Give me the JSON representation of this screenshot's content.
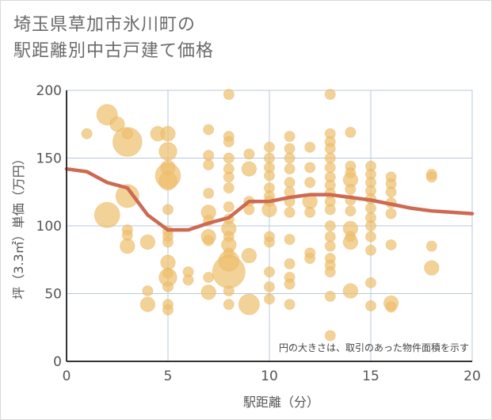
{
  "title_lines": [
    "埼玉県草加市氷川町の",
    "駅距離別中古戸建て価格"
  ],
  "chart_data": {
    "type": "scatter",
    "xlabel": "駅距離（分）",
    "ylabel": "坪（3.3㎡）単価（万円）",
    "xlim": [
      0,
      20
    ],
    "ylim": [
      0,
      200
    ],
    "x_ticks": [
      0,
      5,
      10,
      15,
      20
    ],
    "y_ticks": [
      0,
      50,
      100,
      150,
      200
    ],
    "grid": true,
    "annotation": "円の大きさは、取引のあった物件面積を示す",
    "colors": {
      "bubble": "#eebf6c",
      "bubble_edge": "#e6a94a",
      "line": "#cc6a52",
      "grid": "#b9c9dc",
      "axis": "#333333"
    },
    "points": [
      {
        "x": 1,
        "y": 168,
        "r": 1
      },
      {
        "x": 2,
        "y": 182,
        "r": 4
      },
      {
        "x": 2,
        "y": 108,
        "r": 6
      },
      {
        "x": 2.5,
        "y": 175,
        "r": 2
      },
      {
        "x": 3,
        "y": 162,
        "r": 8
      },
      {
        "x": 3,
        "y": 122,
        "r": 5
      },
      {
        "x": 3,
        "y": 168,
        "r": 1
      },
      {
        "x": 3,
        "y": 97,
        "r": 1
      },
      {
        "x": 3,
        "y": 93,
        "r": 1
      },
      {
        "x": 3,
        "y": 85,
        "r": 2
      },
      {
        "x": 4,
        "y": 88,
        "r": 2
      },
      {
        "x": 4,
        "y": 52,
        "r": 1
      },
      {
        "x": 4,
        "y": 42,
        "r": 2
      },
      {
        "x": 4.5,
        "y": 168,
        "r": 2
      },
      {
        "x": 5,
        "y": 168,
        "r": 2
      },
      {
        "x": 5,
        "y": 155,
        "r": 3
      },
      {
        "x": 5,
        "y": 143,
        "r": 2
      },
      {
        "x": 5,
        "y": 137,
        "r": 6
      },
      {
        "x": 5,
        "y": 133,
        "r": 3
      },
      {
        "x": 5,
        "y": 112,
        "r": 1
      },
      {
        "x": 5,
        "y": 96,
        "r": 1
      },
      {
        "x": 5,
        "y": 92,
        "r": 1
      },
      {
        "x": 5,
        "y": 88,
        "r": 1
      },
      {
        "x": 5,
        "y": 73,
        "r": 2
      },
      {
        "x": 5,
        "y": 65,
        "r": 1
      },
      {
        "x": 5,
        "y": 62,
        "r": 3
      },
      {
        "x": 5,
        "y": 55,
        "r": 1
      },
      {
        "x": 5,
        "y": 42,
        "r": 1
      },
      {
        "x": 5,
        "y": 38,
        "r": 1
      },
      {
        "x": 6,
        "y": 66,
        "r": 1
      },
      {
        "x": 6,
        "y": 60,
        "r": 1
      },
      {
        "x": 7,
        "y": 171,
        "r": 1
      },
      {
        "x": 7,
        "y": 152,
        "r": 1
      },
      {
        "x": 7,
        "y": 145,
        "r": 1
      },
      {
        "x": 7,
        "y": 124,
        "r": 1
      },
      {
        "x": 7,
        "y": 110,
        "r": 2
      },
      {
        "x": 7,
        "y": 104,
        "r": 1
      },
      {
        "x": 7,
        "y": 92,
        "r": 2
      },
      {
        "x": 7,
        "y": 89,
        "r": 1
      },
      {
        "x": 7,
        "y": 62,
        "r": 1
      },
      {
        "x": 7,
        "y": 51,
        "r": 2
      },
      {
        "x": 8,
        "y": 197,
        "r": 1
      },
      {
        "x": 8,
        "y": 166,
        "r": 1
      },
      {
        "x": 8,
        "y": 162,
        "r": 1
      },
      {
        "x": 8,
        "y": 150,
        "r": 1
      },
      {
        "x": 8,
        "y": 142,
        "r": 1
      },
      {
        "x": 8,
        "y": 136,
        "r": 1
      },
      {
        "x": 8,
        "y": 128,
        "r": 1
      },
      {
        "x": 8,
        "y": 114,
        "r": 1
      },
      {
        "x": 8,
        "y": 105,
        "r": 1
      },
      {
        "x": 8,
        "y": 98,
        "r": 2
      },
      {
        "x": 8,
        "y": 92,
        "r": 1
      },
      {
        "x": 8,
        "y": 86,
        "r": 2
      },
      {
        "x": 8,
        "y": 80,
        "r": 1
      },
      {
        "x": 8,
        "y": 74,
        "r": 4
      },
      {
        "x": 8,
        "y": 66,
        "r": 10
      },
      {
        "x": 8,
        "y": 52,
        "r": 1
      },
      {
        "x": 8,
        "y": 42,
        "r": 1
      },
      {
        "x": 9,
        "y": 153,
        "r": 1
      },
      {
        "x": 9,
        "y": 142,
        "r": 2
      },
      {
        "x": 9,
        "y": 118,
        "r": 1
      },
      {
        "x": 9,
        "y": 112,
        "r": 1
      },
      {
        "x": 9,
        "y": 78,
        "r": 2
      },
      {
        "x": 9,
        "y": 42,
        "r": 4
      },
      {
        "x": 10,
        "y": 158,
        "r": 1
      },
      {
        "x": 10,
        "y": 150,
        "r": 1
      },
      {
        "x": 10,
        "y": 143,
        "r": 1
      },
      {
        "x": 10,
        "y": 137,
        "r": 1
      },
      {
        "x": 10,
        "y": 128,
        "r": 1
      },
      {
        "x": 10,
        "y": 122,
        "r": 1
      },
      {
        "x": 10,
        "y": 118,
        "r": 1
      },
      {
        "x": 10,
        "y": 112,
        "r": 2
      },
      {
        "x": 10,
        "y": 92,
        "r": 1
      },
      {
        "x": 10,
        "y": 88,
        "r": 1
      },
      {
        "x": 10,
        "y": 66,
        "r": 1
      },
      {
        "x": 10,
        "y": 55,
        "r": 1
      },
      {
        "x": 10,
        "y": 46,
        "r": 1
      },
      {
        "x": 11,
        "y": 166,
        "r": 1
      },
      {
        "x": 11,
        "y": 157,
        "r": 1
      },
      {
        "x": 11,
        "y": 150,
        "r": 1
      },
      {
        "x": 11,
        "y": 142,
        "r": 1
      },
      {
        "x": 11,
        "y": 132,
        "r": 1
      },
      {
        "x": 11,
        "y": 125,
        "r": 1
      },
      {
        "x": 11,
        "y": 118,
        "r": 1
      },
      {
        "x": 11,
        "y": 110,
        "r": 1
      },
      {
        "x": 11,
        "y": 90,
        "r": 1
      },
      {
        "x": 11,
        "y": 72,
        "r": 1
      },
      {
        "x": 11,
        "y": 62,
        "r": 1
      },
      {
        "x": 11,
        "y": 57,
        "r": 1
      },
      {
        "x": 11,
        "y": 42,
        "r": 1
      },
      {
        "x": 12,
        "y": 158,
        "r": 1
      },
      {
        "x": 12,
        "y": 143,
        "r": 1
      },
      {
        "x": 12,
        "y": 132,
        "r": 1
      },
      {
        "x": 12,
        "y": 118,
        "r": 2
      },
      {
        "x": 12,
        "y": 110,
        "r": 1
      },
      {
        "x": 12,
        "y": 80,
        "r": 1
      },
      {
        "x": 12,
        "y": 76,
        "r": 1
      },
      {
        "x": 13,
        "y": 197,
        "r": 1
      },
      {
        "x": 13,
        "y": 168,
        "r": 1
      },
      {
        "x": 13,
        "y": 162,
        "r": 1
      },
      {
        "x": 13,
        "y": 157,
        "r": 1
      },
      {
        "x": 13,
        "y": 150,
        "r": 1
      },
      {
        "x": 13,
        "y": 143,
        "r": 1
      },
      {
        "x": 13,
        "y": 136,
        "r": 1
      },
      {
        "x": 13,
        "y": 130,
        "r": 1
      },
      {
        "x": 13,
        "y": 124,
        "r": 1
      },
      {
        "x": 13,
        "y": 118,
        "r": 1
      },
      {
        "x": 13,
        "y": 112,
        "r": 1
      },
      {
        "x": 13,
        "y": 100,
        "r": 1
      },
      {
        "x": 13,
        "y": 92,
        "r": 1
      },
      {
        "x": 13,
        "y": 85,
        "r": 1
      },
      {
        "x": 13,
        "y": 76,
        "r": 1
      },
      {
        "x": 13,
        "y": 71,
        "r": 1
      },
      {
        "x": 13,
        "y": 66,
        "r": 1
      },
      {
        "x": 13,
        "y": 48,
        "r": 1
      },
      {
        "x": 13,
        "y": 19,
        "r": 1
      },
      {
        "x": 14,
        "y": 169,
        "r": 1
      },
      {
        "x": 14,
        "y": 144,
        "r": 1
      },
      {
        "x": 14,
        "y": 139,
        "r": 1
      },
      {
        "x": 14,
        "y": 134,
        "r": 2
      },
      {
        "x": 14,
        "y": 127,
        "r": 1
      },
      {
        "x": 14,
        "y": 119,
        "r": 1
      },
      {
        "x": 14,
        "y": 111,
        "r": 1
      },
      {
        "x": 14,
        "y": 98,
        "r": 2
      },
      {
        "x": 14,
        "y": 92,
        "r": 1
      },
      {
        "x": 14,
        "y": 88,
        "r": 2
      },
      {
        "x": 14,
        "y": 52,
        "r": 2
      },
      {
        "x": 15,
        "y": 144,
        "r": 1
      },
      {
        "x": 15,
        "y": 138,
        "r": 1
      },
      {
        "x": 15,
        "y": 132,
        "r": 1
      },
      {
        "x": 15,
        "y": 126,
        "r": 1
      },
      {
        "x": 15,
        "y": 120,
        "r": 1
      },
      {
        "x": 15,
        "y": 113,
        "r": 1
      },
      {
        "x": 15,
        "y": 106,
        "r": 1
      },
      {
        "x": 15,
        "y": 100,
        "r": 1
      },
      {
        "x": 15,
        "y": 92,
        "r": 1
      },
      {
        "x": 15,
        "y": 82,
        "r": 1
      },
      {
        "x": 15,
        "y": 58,
        "r": 1
      },
      {
        "x": 15,
        "y": 41,
        "r": 1
      },
      {
        "x": 16,
        "y": 136,
        "r": 1
      },
      {
        "x": 16,
        "y": 131,
        "r": 1
      },
      {
        "x": 16,
        "y": 125,
        "r": 1
      },
      {
        "x": 16,
        "y": 117,
        "r": 1
      },
      {
        "x": 16,
        "y": 109,
        "r": 1
      },
      {
        "x": 16,
        "y": 86,
        "r": 1
      },
      {
        "x": 16,
        "y": 43,
        "r": 2
      },
      {
        "x": 16,
        "y": 40,
        "r": 1
      },
      {
        "x": 18,
        "y": 138,
        "r": 1
      },
      {
        "x": 18,
        "y": 136,
        "r": 1
      },
      {
        "x": 18,
        "y": 85,
        "r": 1
      },
      {
        "x": 18,
        "y": 69,
        "r": 2
      }
    ],
    "trend": {
      "x": [
        0,
        1,
        2,
        3,
        4,
        5,
        6,
        7,
        8,
        9,
        10,
        11,
        12,
        13,
        14,
        15,
        16,
        17,
        18,
        19,
        20
      ],
      "y": [
        142,
        140,
        132,
        128,
        108,
        97,
        97,
        102,
        106,
        118,
        118,
        121,
        123,
        123,
        121,
        119,
        116,
        113,
        111,
        110,
        109
      ]
    }
  }
}
